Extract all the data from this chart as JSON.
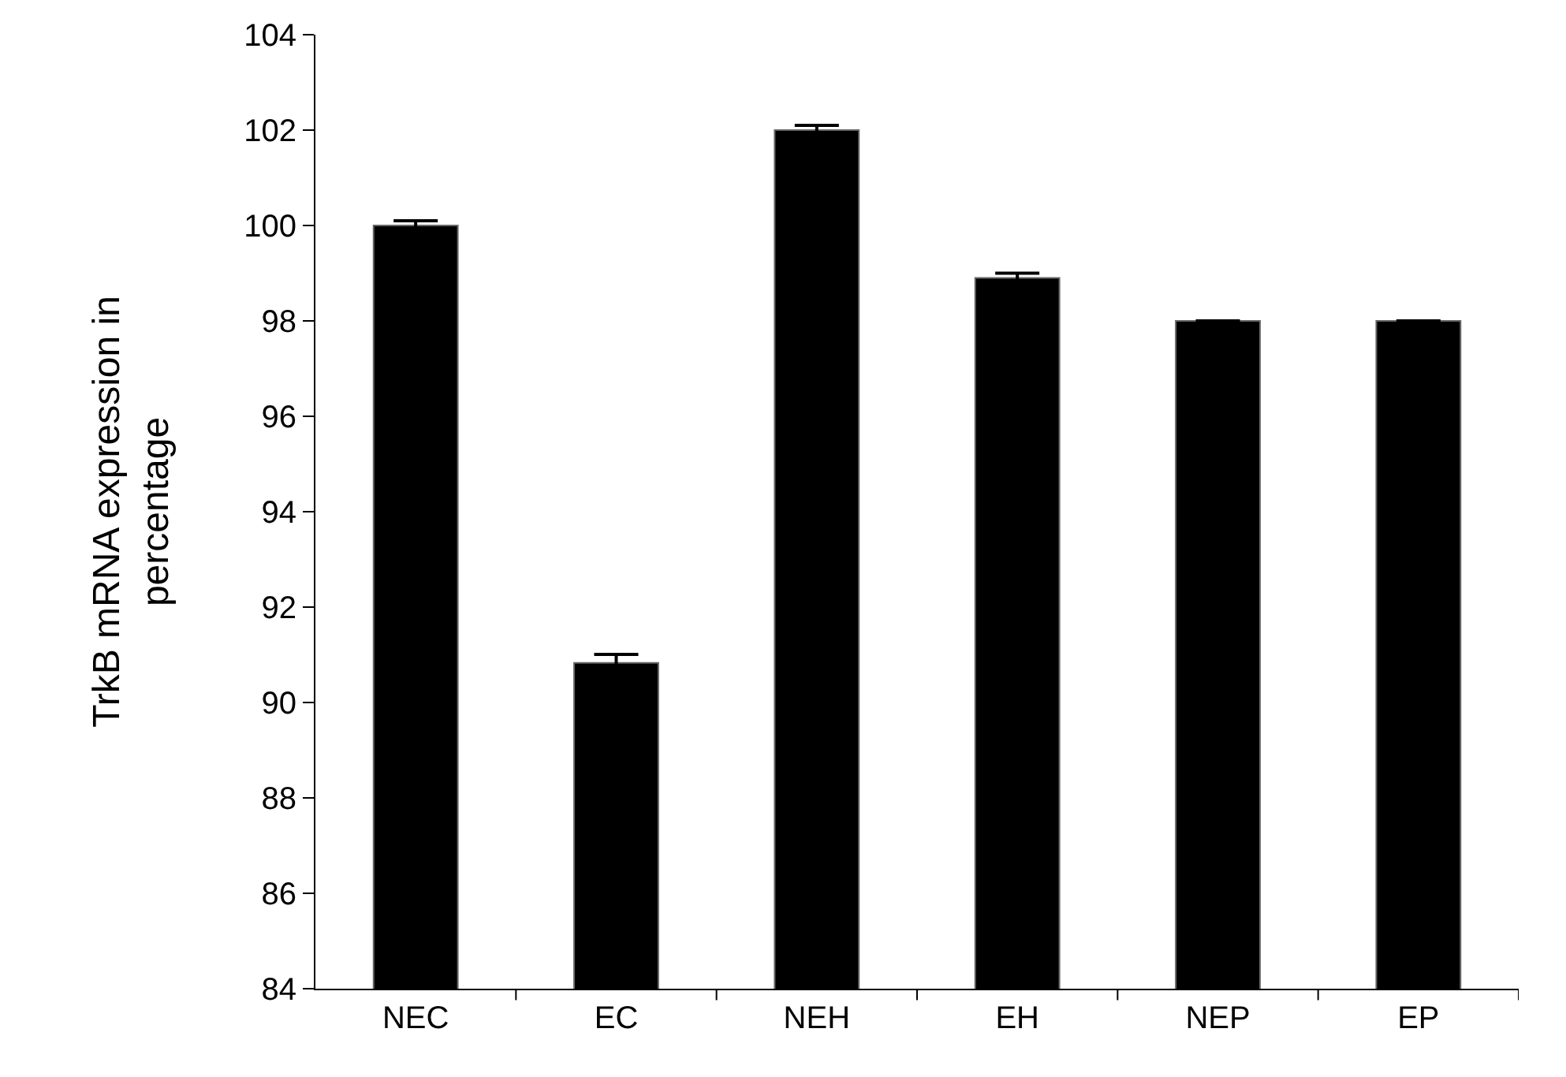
{
  "chart_data": {
    "type": "bar",
    "ylabel": "TrkB mRNA expression in\npercentage",
    "categories": [
      "NEC",
      "EC",
      "NEH",
      "EH",
      "NEP",
      "EP"
    ],
    "values": [
      100.0,
      90.83,
      102.0,
      98.9,
      98.0,
      98.0
    ],
    "errors": [
      0.1,
      0.18,
      0.1,
      0.1,
      null,
      null
    ],
    "color": "#000000",
    "ylim": [
      84,
      104
    ],
    "yticks": [
      84,
      86,
      88,
      90,
      92,
      94,
      96,
      98,
      100,
      102,
      104
    ],
    "grid": false,
    "legend": false
  }
}
